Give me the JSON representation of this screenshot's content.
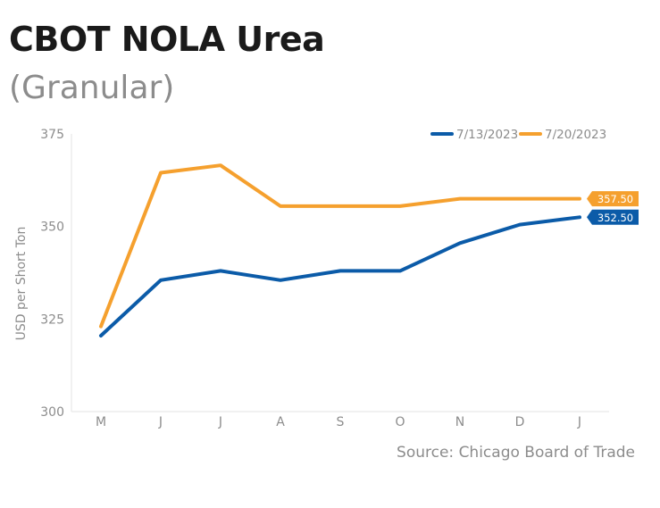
{
  "header": {
    "title": "CBOT NOLA Urea",
    "subtitle": "(Granular)"
  },
  "footer": {
    "source": "Source: Chicago Board of Trade"
  },
  "chart_data": {
    "type": "line",
    "title": "CBOT NOLA Urea",
    "subtitle": "(Granular)",
    "xlabel": "",
    "ylabel": "USD per Short Ton",
    "categories": [
      "M",
      "J",
      "J",
      "A",
      "S",
      "O",
      "N",
      "D",
      "J"
    ],
    "ylim": [
      300,
      375
    ],
    "yticks": [
      300,
      325,
      350,
      375
    ],
    "grid": false,
    "legend_position": "top-right",
    "series": [
      {
        "name": "7/13/2023",
        "color": "#0b5ba8",
        "values": [
          320.5,
          335.5,
          338,
          335.5,
          338,
          338,
          345.5,
          350.5,
          352.5
        ],
        "end_label": "352.50"
      },
      {
        "name": "7/20/2023",
        "color": "#f5a02e",
        "values": [
          323,
          364.5,
          366.5,
          355.5,
          355.5,
          355.5,
          357.5,
          357.5,
          357.5
        ],
        "end_label": "357.50"
      }
    ]
  }
}
